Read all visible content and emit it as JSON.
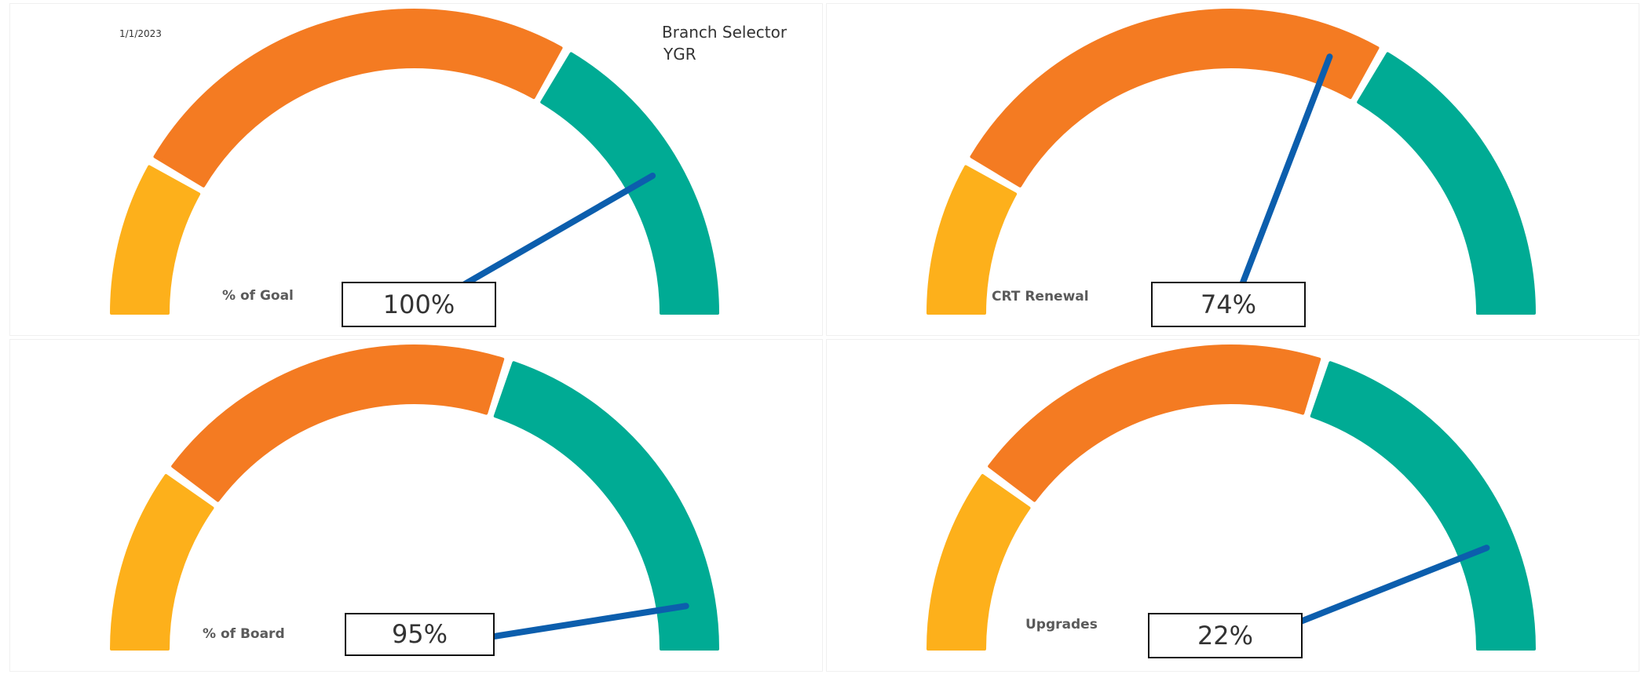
{
  "header": {
    "date": "1/1/2023",
    "branch_selector_label": "Branch Selector",
    "branch_value": "YGR"
  },
  "colors": {
    "band_low": "#FDB01B",
    "band_mid": "#F47B22",
    "band_high": "#00AB94",
    "needle": "#0C5EAD"
  },
  "chart_data": [
    {
      "type": "gauge",
      "label": "% of Goal",
      "value": 1.0,
      "display": "100%",
      "bands": [
        0,
        0.2,
        0.8,
        1.2
      ],
      "range": [
        0,
        1.2
      ]
    },
    {
      "type": "gauge",
      "label": "CRT Renewal",
      "value": 0.74,
      "display": "74%",
      "bands": [
        0,
        0.2,
        0.8,
        1.2
      ],
      "range": [
        0,
        1.2
      ]
    },
    {
      "type": "gauge",
      "label": "% of Board",
      "value": 0.95,
      "display": "95%",
      "bands": [
        0,
        0.2,
        0.6,
        1.0
      ],
      "range": [
        0,
        1.0
      ]
    },
    {
      "type": "gauge",
      "label": "Upgrades",
      "value": 0.22,
      "display": "22%",
      "bands": [
        0,
        0.05,
        0.15,
        0.25
      ],
      "range": [
        0,
        0.25
      ]
    }
  ]
}
